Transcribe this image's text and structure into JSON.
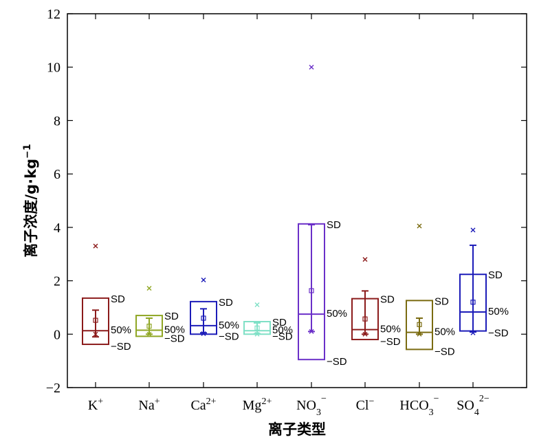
{
  "chart_data": {
    "type": "box",
    "xlabel": "离子类型",
    "ylabel": "离子浓度/g·kg",
    "ylabel_sup": "−1",
    "ylim": [
      -2,
      12
    ],
    "yticks": [
      -2,
      0,
      2,
      4,
      6,
      8,
      10,
      12
    ],
    "grid": false,
    "box_labels": {
      "upper": "SD",
      "median": "50%",
      "lower": "−SD"
    },
    "categories": [
      {
        "base": "K",
        "sub": "",
        "sup": "+",
        "color": "#8b1a1a",
        "sd_low": -0.38,
        "sd_high": 1.35,
        "median": 0.13,
        "mean": 0.52,
        "whisker_low": -0.1,
        "whisker_high": 0.9,
        "min": 0.0,
        "max": 3.3,
        "outliers": []
      },
      {
        "base": "Na",
        "sub": "",
        "sup": "+",
        "color": "#8fa623",
        "sd_low": -0.08,
        "sd_high": 0.7,
        "median": 0.15,
        "mean": 0.3,
        "whisker_low": 0.0,
        "whisker_high": 0.6,
        "min": 0.0,
        "max": 1.72,
        "outliers": []
      },
      {
        "base": "Ca",
        "sub": "",
        "sup": "2+",
        "color": "#1b1bb8",
        "sd_low": 0.0,
        "sd_high": 1.22,
        "median": 0.32,
        "mean": 0.6,
        "whisker_low": 0.05,
        "whisker_high": 0.95,
        "min": 0.02,
        "max": 2.03,
        "outliers": []
      },
      {
        "base": "Mg",
        "sub": "",
        "sup": "2+",
        "color": "#7fe0c6",
        "sd_low": 0.0,
        "sd_high": 0.47,
        "median": 0.13,
        "mean": 0.23,
        "whisker_low": 0.02,
        "whisker_high": 0.42,
        "min": 0.0,
        "max": 1.1,
        "outliers": []
      },
      {
        "base": "NO",
        "sub": "3",
        "sup": "−",
        "color": "#6a2fc8",
        "sd_low": -0.95,
        "sd_high": 4.13,
        "median": 0.75,
        "mean": 1.63,
        "whisker_low": 0.1,
        "whisker_high": 4.1,
        "min": 0.1,
        "max": 10.0,
        "outliers": []
      },
      {
        "base": "Cl",
        "sub": "",
        "sup": "−",
        "color": "#8b1a1a",
        "sd_low": -0.2,
        "sd_high": 1.33,
        "median": 0.17,
        "mean": 0.57,
        "whisker_low": 0.0,
        "whisker_high": 1.62,
        "min": 0.0,
        "max": 2.8,
        "outliers": []
      },
      {
        "base": "HCO",
        "sub": "3",
        "sup": "−",
        "color": "#7a6b10",
        "sd_low": -0.57,
        "sd_high": 1.26,
        "median": 0.07,
        "mean": 0.36,
        "whisker_low": 0.0,
        "whisker_high": 0.6,
        "min": 0.0,
        "max": 4.05,
        "outliers": []
      },
      {
        "base": "SO",
        "sub": "4",
        "sup": "2−",
        "color": "#1b1bb8",
        "sd_low": 0.12,
        "sd_high": 2.24,
        "median": 0.83,
        "mean": 1.2,
        "whisker_low": 0.08,
        "whisker_high": 3.33,
        "min": 0.05,
        "max": 3.9,
        "outliers": []
      }
    ]
  }
}
